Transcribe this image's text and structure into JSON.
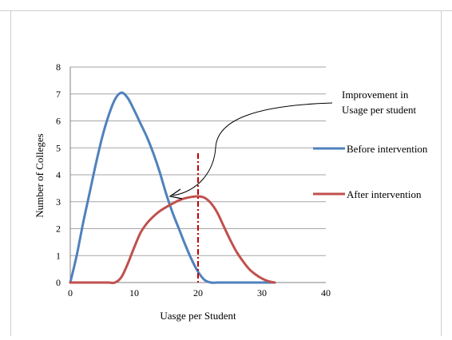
{
  "chart_data": {
    "type": "line",
    "title": "",
    "xlabel": "Uasge per Student",
    "ylabel": "Number of Colleges",
    "xlim": [
      0,
      40
    ],
    "ylim": [
      0,
      8
    ],
    "x_ticks": [
      0,
      10,
      20,
      30,
      40
    ],
    "y_ticks": [
      0,
      1,
      2,
      3,
      4,
      5,
      6,
      7,
      8
    ],
    "grid": "horizontal",
    "legend_position": "right",
    "colors": {
      "before": "#4f81bd",
      "after": "#c0504d"
    },
    "series": [
      {
        "name": "Before intervention",
        "x": [
          0,
          1,
          2,
          3,
          4,
          5,
          6,
          7,
          8,
          9,
          10,
          11,
          12,
          13,
          14,
          15,
          16,
          17,
          18,
          19,
          20,
          21,
          22,
          23,
          24,
          25,
          26,
          27,
          28,
          29,
          30,
          31,
          32
        ],
        "y": [
          0,
          1.0,
          2.2,
          3.3,
          4.4,
          5.4,
          6.2,
          6.8,
          7.05,
          6.85,
          6.4,
          5.9,
          5.4,
          4.8,
          4.1,
          3.3,
          2.6,
          2.0,
          1.4,
          0.85,
          0.4,
          0.1,
          0,
          0,
          0,
          0,
          0,
          0,
          0,
          0,
          0,
          0,
          0
        ]
      },
      {
        "name": "After intervention",
        "x": [
          0,
          1,
          2,
          3,
          4,
          5,
          6,
          7,
          8,
          9,
          10,
          11,
          12,
          13,
          14,
          15,
          16,
          17,
          18,
          19,
          20,
          21,
          22,
          23,
          24,
          25,
          26,
          27,
          28,
          29,
          30,
          31,
          32
        ],
        "y": [
          0,
          0,
          0,
          0,
          0,
          0,
          0,
          0,
          0.2,
          0.7,
          1.3,
          1.85,
          2.2,
          2.45,
          2.65,
          2.8,
          2.93,
          3.05,
          3.13,
          3.18,
          3.2,
          3.15,
          2.95,
          2.6,
          2.1,
          1.6,
          1.15,
          0.8,
          0.5,
          0.3,
          0.15,
          0.05,
          0
        ]
      }
    ],
    "reference_line": {
      "x": 20,
      "style": "dash-dot",
      "color": "#c00000"
    },
    "annotation": {
      "text_line1": "Improvement in",
      "text_line2": "Usage per student"
    }
  }
}
